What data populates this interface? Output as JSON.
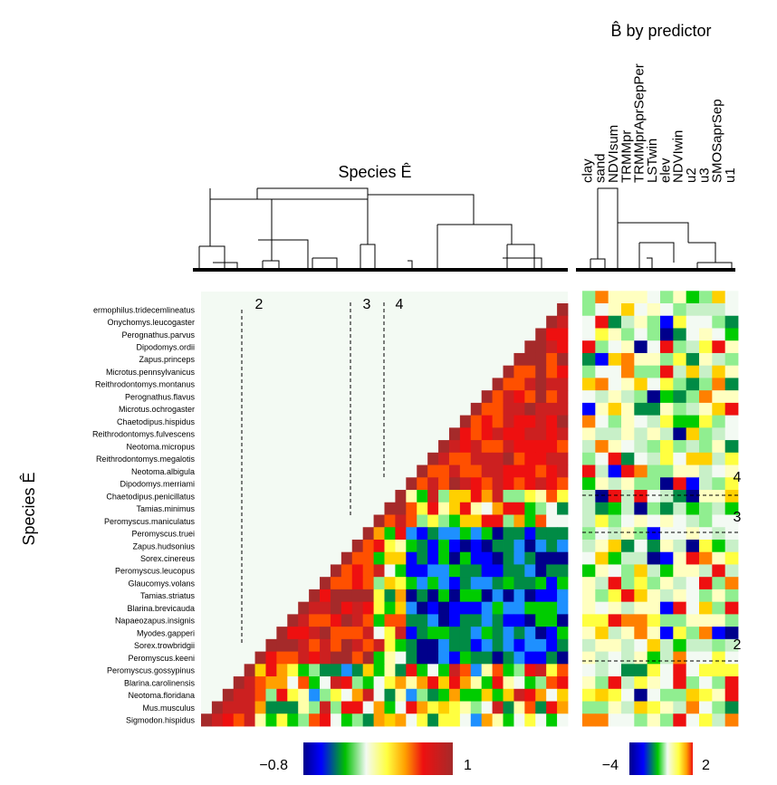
{
  "chart_data": {
    "type": "heatmap",
    "left_panel": {
      "title": "Species Ê",
      "ylabel": "Species Ê",
      "colorbar": {
        "min_label": "−0.8",
        "max_label": "1",
        "range": [
          -0.8,
          1
        ]
      },
      "group_labels": [
        "2",
        "3",
        "4"
      ]
    },
    "right_panel": {
      "title": "B̂ by predictor",
      "colorbar": {
        "min_label": "−4",
        "max_label": "2",
        "range": [
          -4,
          2
        ]
      },
      "group_labels": [
        "4",
        "3",
        "2"
      ],
      "predictors": [
        "clay",
        "sand",
        "NDVIsum",
        "TRMMpr",
        "TRMMprAprSepPer",
        "LSTwin",
        "elev",
        "NDVIwin",
        "u2",
        "u3",
        "SMOSaprSep",
        "u1"
      ]
    },
    "species": [
      "Spermophilus.tridecemlineatus",
      "Onychomys.leucogaster",
      "Perognathus.parvus",
      "Dipodomys.ordii",
      "Zapus.princeps",
      "Microtus.pennsylvanicus",
      "Reithrodontomys.montanus",
      "Perognathus.flavus",
      "Microtus.ochrogaster",
      "Chaetodipus.hispidus",
      "Reithrodontomys.fulvescens",
      "Neotoma.micropus",
      "Reithrodontomys.megalotis",
      "Neotoma.albigula",
      "Dipodomys.merriami",
      "Chaetodipus.penicillatus",
      "Tamias.minimus",
      "Peromyscus.maniculatus",
      "Peromyscus.truei",
      "Zapus.hudsonius",
      "Sorex.cinereus",
      "Peromyscus.leucopus",
      "Glaucomys.volans",
      "Tamias.striatus",
      "Blarina.brevicauda",
      "Napaeozapus.insignis",
      "Myodes.gapperi",
      "Sorex.trowbridgii",
      "Peromyscus.keeni",
      "Peromyscus.gossypinus",
      "Blarina.carolinensis",
      "Neotoma.floridana",
      "Mus.musculus",
      "Sigmodon.hispidus"
    ],
    "species_label_shown": [
      "Spermophilus.tridecemlineatus",
      "ermophilus.tridecemlineatus"
    ]
  }
}
